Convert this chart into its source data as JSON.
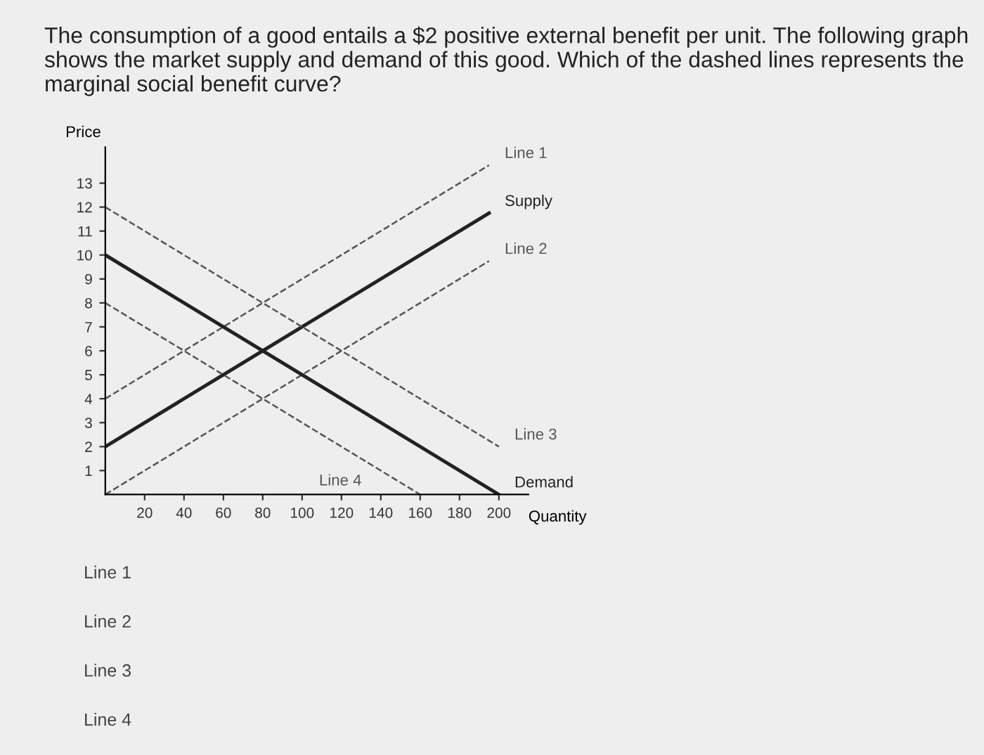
{
  "chart_data": {
    "type": "line",
    "title": "The consumption of a good entails a $2 positive external benefit per unit. The following graph shows the market supply and demand of this good. Which of the dashed lines represents the marginal social benefit curve?",
    "xlabel": "Quantity",
    "ylabel": "Price",
    "series": [
      {
        "name": "Line 1",
        "color": "#555555",
        "line_style": "dashed",
        "x": [
          0,
          195
        ],
        "values": [
          4,
          13.75
        ]
      },
      {
        "name": "Supply",
        "color": "#222222",
        "line_style": "solid",
        "x": [
          0,
          195
        ],
        "values": [
          2,
          11.75
        ]
      },
      {
        "name": "Line 2",
        "color": "#555555",
        "line_style": "dashed",
        "x": [
          0,
          195
        ],
        "values": [
          0,
          9.75
        ]
      },
      {
        "name": "Line 3",
        "color": "#555555",
        "line_style": "dashed",
        "x": [
          0,
          200
        ],
        "values": [
          12,
          2
        ]
      },
      {
        "name": "Line 4",
        "color": "#555555",
        "line_style": "dashed",
        "x": [
          0,
          160
        ],
        "values": [
          8,
          0
        ]
      },
      {
        "name": "Demand",
        "color": "#222222",
        "line_style": "solid",
        "x": [
          0,
          200
        ],
        "values": [
          10,
          0
        ]
      }
    ],
    "xlim": [
      0,
      215
    ],
    "xticks": [
      20,
      40,
      60,
      80,
      100,
      120,
      140,
      160,
      180,
      200
    ],
    "ylim": [
      0,
      14.5
    ],
    "yticks": [
      1,
      2,
      3,
      4,
      5,
      6,
      7,
      8,
      9,
      10,
      11,
      12,
      13
    ],
    "grid": false,
    "legend": false,
    "marker": "none",
    "annotations": [
      "Line 1",
      "Line 2",
      "Line 3",
      "Line 4"
    ]
  }
}
